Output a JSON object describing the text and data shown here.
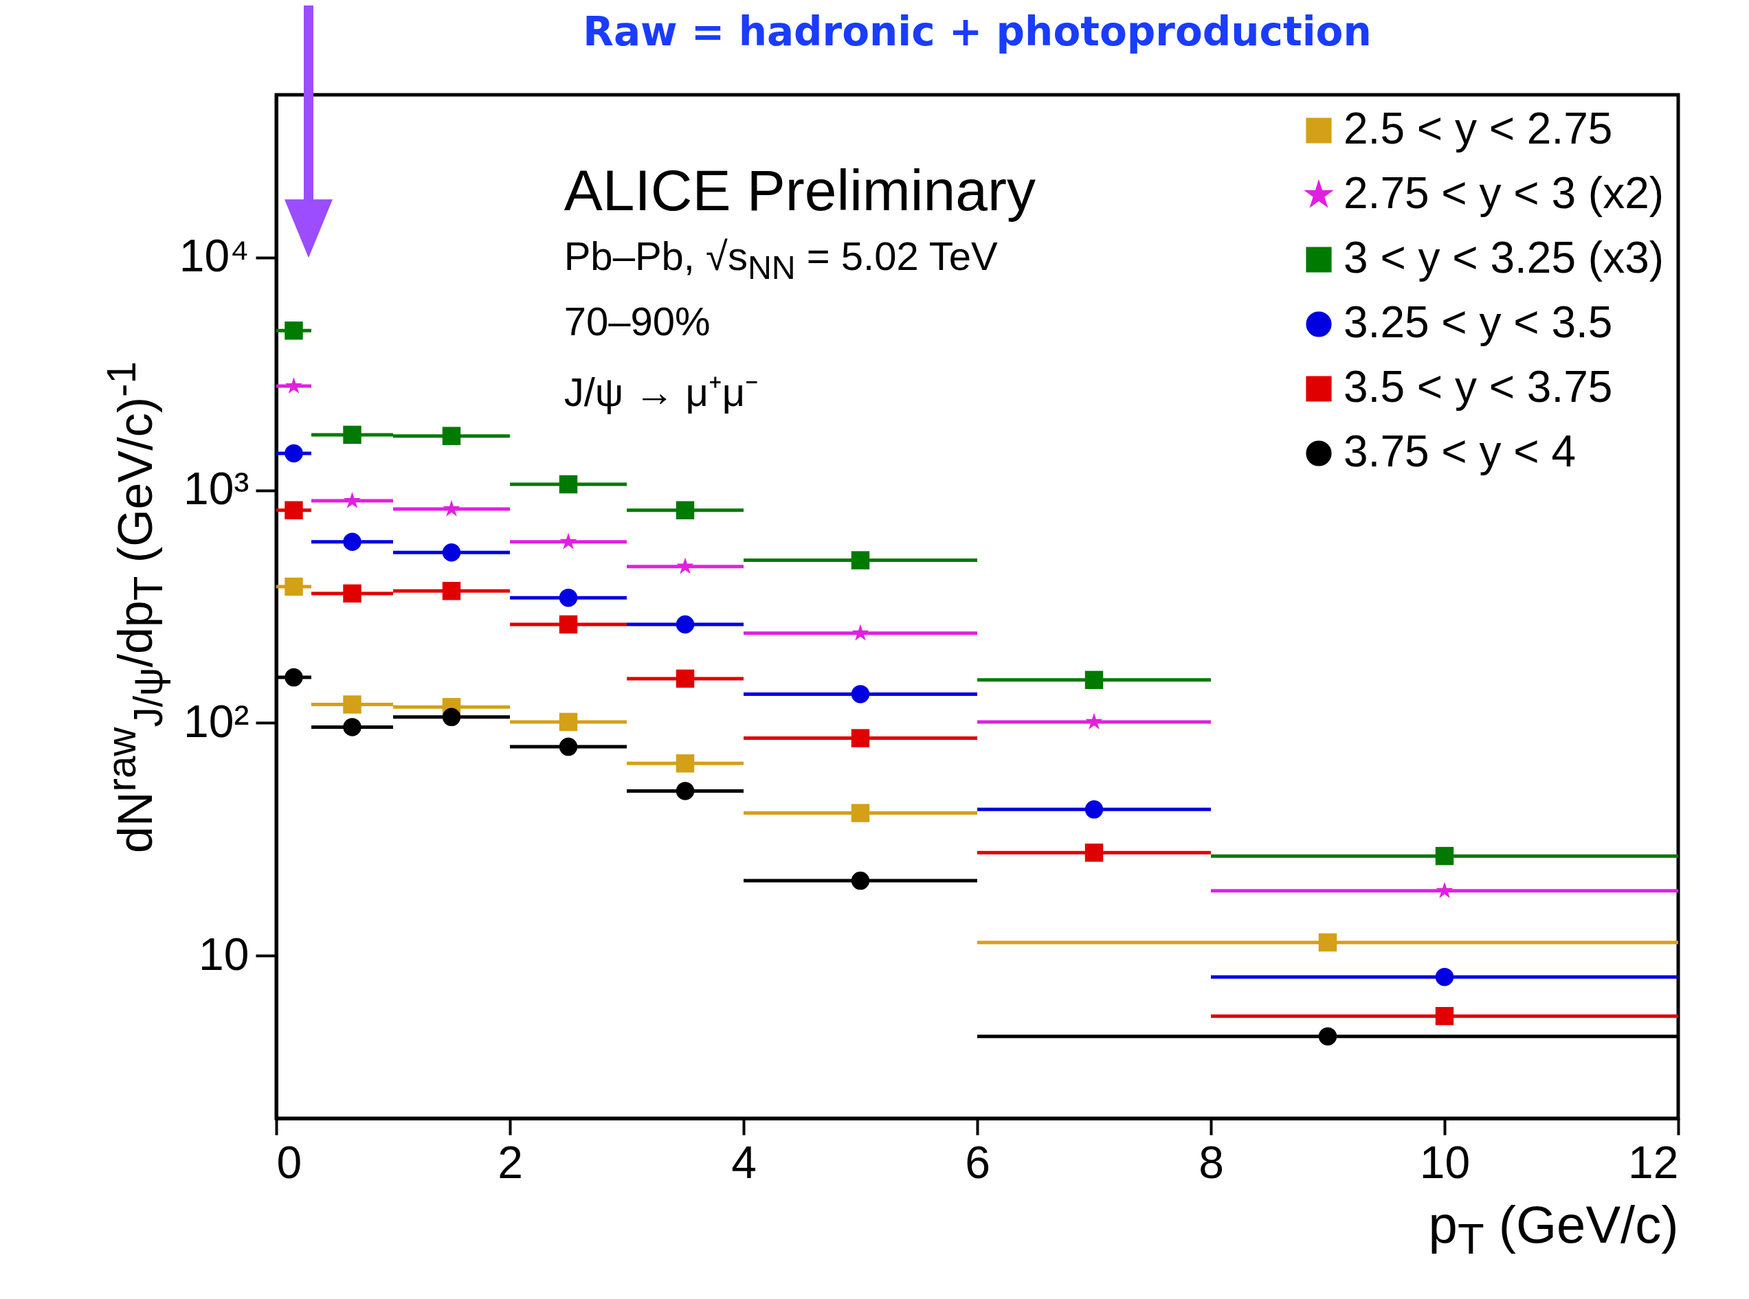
{
  "chart_data": {
    "type": "scatter",
    "title": "Raw = hadronic + photoproduction",
    "xlabel": "p$_{T}$ (GeV/c)",
    "ylabel": "dN$^{raw}$$_{J/ψ}$/dp$_{T}$ (GeV/c)$^{-1}$",
    "annotations": [
      "ALICE Preliminary",
      "Pb–Pb, √s$_{NN}$ = 5.02 TeV",
      "70–90%",
      "J/ψ → μ⁺μ⁻"
    ],
    "log": true,
    "grid": false,
    "legend": "top right",
    "xlim": [
      0,
      12
    ],
    "ylim": [
      2,
      50000
    ],
    "xticks": [
      0,
      2,
      4,
      6,
      8,
      10,
      12
    ],
    "yticks": [
      {
        "value": 10,
        "label": "10"
      },
      {
        "value": 100,
        "label": "10²"
      },
      {
        "value": 1000,
        "label": "10³"
      },
      {
        "value": 10000,
        "label": "10⁴"
      }
    ],
    "series": [
      {
        "name": "2.5 < y < 2.75",
        "color": "#d4a017",
        "marker": "square",
        "x": [
          0.15,
          0.65,
          1.5,
          2.5,
          3.5,
          5,
          9
        ],
        "values": [
          385,
          120,
          117,
          101,
          67,
          41,
          11.4
        ],
        "xerrors": [
          0.15,
          0.35,
          0.5,
          0.5,
          0.5,
          1,
          3
        ]
      },
      {
        "name": "2.75 < y < 3 (x2)",
        "color": "#e020e0",
        "marker": "star",
        "x": [
          0.15,
          0.65,
          1.5,
          2.5,
          3.5,
          5,
          7,
          10
        ],
        "values": [
          2800,
          900,
          830,
          600,
          470,
          243,
          101,
          19
        ],
        "xerrors": [
          0.15,
          0.35,
          0.5,
          0.5,
          0.5,
          1,
          1,
          2
        ]
      },
      {
        "name": "3 < y < 3.25 (x3)",
        "color": "#007a00",
        "marker": "square",
        "x": [
          0.15,
          0.65,
          1.5,
          2.5,
          3.5,
          5,
          7,
          10
        ],
        "values": [
          4850,
          1730,
          1710,
          1060,
          820,
          500,
          153,
          26.8
        ],
        "xerrors": [
          0.15,
          0.35,
          0.5,
          0.5,
          0.5,
          1,
          1,
          2
        ]
      },
      {
        "name": "3.25 < y < 3.5",
        "color": "#0000e0",
        "marker": "circle",
        "x": [
          0.15,
          0.65,
          1.5,
          2.5,
          3.5,
          5,
          7,
          10
        ],
        "values": [
          1440,
          600,
          540,
          345,
          265,
          133,
          42.5,
          8.1
        ],
        "xerrors": [
          0.15,
          0.35,
          0.5,
          0.5,
          0.5,
          1,
          1,
          2
        ]
      },
      {
        "name": "3.5 < y < 3.75",
        "color": "#e00000",
        "marker": "square",
        "x": [
          0.15,
          0.65,
          1.5,
          2.5,
          3.5,
          5,
          7,
          10
        ],
        "values": [
          820,
          360,
          369,
          265,
          155,
          86,
          27.7,
          5.5
        ],
        "xerrors": [
          0.15,
          0.35,
          0.5,
          0.5,
          0.5,
          1,
          1,
          2
        ]
      },
      {
        "name": "3.75 < y < 4",
        "color": "#000000",
        "marker": "circle",
        "x": [
          0.15,
          0.65,
          1.5,
          2.5,
          3.5,
          5,
          9
        ],
        "values": [
          157,
          96,
          106,
          79,
          51,
          21,
          4.5
        ],
        "xerrors": [
          0.15,
          0.35,
          0.5,
          0.5,
          0.5,
          1,
          3
        ]
      }
    ]
  }
}
